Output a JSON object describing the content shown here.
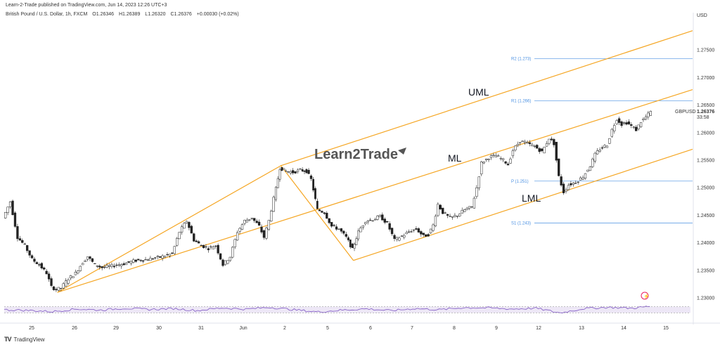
{
  "header": {
    "published": "Learn-2-Trade published on TradingView.com, Jun 14, 2023 12:26 UTC+3"
  },
  "instrument": {
    "name": "British Pound / U.S. Dollar, 1h, FXCM",
    "open": "O1.26346",
    "high": "H1.26389",
    "low": "L1.26320",
    "close": "C1.26376",
    "change": "+0.00030 (+0.02%)"
  },
  "footer": {
    "brand": "TradingView"
  },
  "watermark": "Learn2Trade",
  "chart_data": {
    "type": "candlestick",
    "currency": "USD",
    "symbol": "GBPUSD",
    "last_price": "1.26376",
    "countdown": "33:58",
    "ylim": [
      1.2295,
      1.2805
    ],
    "y_ticks": [
      "1.27500",
      "1.27000",
      "1.26500",
      "1.26000",
      "1.25500",
      "1.25000",
      "1.24500",
      "1.24000",
      "1.23500",
      "1.23000"
    ],
    "x_ticks": [
      "25",
      "26",
      "29",
      "30",
      "31",
      "Jun",
      "2",
      "5",
      "6",
      "7",
      "8",
      "9",
      "12",
      "13",
      "14",
      "15"
    ],
    "pivot_levels": [
      {
        "label": "R2 (1.273)",
        "value": 1.2734
      },
      {
        "label": "R1 (1.266)",
        "value": 1.2658
      },
      {
        "label": "P (1.251)",
        "value": 1.2512
      },
      {
        "label": "S1 (1.243)",
        "value": 1.2436
      }
    ],
    "channel": {
      "upper_label": "UML",
      "middle_label": "ML",
      "lower_label": "LML",
      "color": "#f5a623"
    },
    "price_path": [
      [
        0,
        1.2445
      ],
      [
        0.3,
        1.2475
      ],
      [
        0.6,
        1.241
      ],
      [
        0.9,
        1.2395
      ],
      [
        1.2,
        1.237
      ],
      [
        1.5,
        1.236
      ],
      [
        1.8,
        1.2345
      ],
      [
        2.0,
        1.232
      ],
      [
        2.2,
        1.2315
      ],
      [
        2.4,
        1.2318
      ],
      [
        2.7,
        1.2335
      ],
      [
        3.0,
        1.2345
      ],
      [
        3.3,
        1.2365
      ],
      [
        3.5,
        1.2375
      ],
      [
        3.8,
        1.236
      ],
      [
        4.1,
        1.2355
      ],
      [
        4.5,
        1.2358
      ],
      [
        5.0,
        1.2362
      ],
      [
        5.5,
        1.2368
      ],
      [
        6.0,
        1.237
      ],
      [
        6.5,
        1.2374
      ],
      [
        7.0,
        1.238
      ],
      [
        7.3,
        1.242
      ],
      [
        7.6,
        1.244
      ],
      [
        7.9,
        1.2405
      ],
      [
        8.2,
        1.2395
      ],
      [
        8.5,
        1.239
      ],
      [
        8.8,
        1.2395
      ],
      [
        9.1,
        1.236
      ],
      [
        9.4,
        1.2375
      ],
      [
        9.7,
        1.242
      ],
      [
        10.0,
        1.244
      ],
      [
        10.3,
        1.2445
      ],
      [
        10.6,
        1.243
      ],
      [
        10.8,
        1.241
      ],
      [
        11.0,
        1.244
      ],
      [
        11.2,
        1.248
      ],
      [
        11.45,
        1.2536
      ],
      [
        11.7,
        1.253
      ],
      [
        12.0,
        1.2528
      ],
      [
        12.3,
        1.2532
      ],
      [
        12.55,
        1.253
      ],
      [
        12.75,
        1.2515
      ],
      [
        13.0,
        1.246
      ],
      [
        13.3,
        1.2455
      ],
      [
        13.6,
        1.243
      ],
      [
        13.9,
        1.2425
      ],
      [
        14.2,
        1.241
      ],
      [
        14.45,
        1.2388
      ],
      [
        14.7,
        1.242
      ],
      [
        15.0,
        1.244
      ],
      [
        15.3,
        1.2442
      ],
      [
        15.6,
        1.2448
      ],
      [
        15.9,
        1.2435
      ],
      [
        16.2,
        1.2405
      ],
      [
        16.5,
        1.2412
      ],
      [
        16.8,
        1.242
      ],
      [
        17.1,
        1.2425
      ],
      [
        17.4,
        1.2412
      ],
      [
        17.6,
        1.2415
      ],
      [
        17.8,
        1.2432
      ],
      [
        18.0,
        1.247
      ],
      [
        18.2,
        1.2455
      ],
      [
        18.5,
        1.2445
      ],
      [
        18.8,
        1.245
      ],
      [
        19.1,
        1.246
      ],
      [
        19.4,
        1.2465
      ],
      [
        19.6,
        1.25
      ],
      [
        19.8,
        1.2545
      ],
      [
        20.1,
        1.2555
      ],
      [
        20.4,
        1.2558
      ],
      [
        20.7,
        1.255
      ],
      [
        20.9,
        1.2542
      ],
      [
        21.1,
        1.2568
      ],
      [
        21.4,
        1.2585
      ],
      [
        21.7,
        1.258
      ],
      [
        22.0,
        1.2575
      ],
      [
        22.3,
        1.2565
      ],
      [
        22.6,
        1.259
      ],
      [
        22.8,
        1.258
      ],
      [
        23.0,
        1.252
      ],
      [
        23.2,
        1.2492
      ],
      [
        23.4,
        1.2505
      ],
      [
        23.7,
        1.251
      ],
      [
        24.0,
        1.252
      ],
      [
        24.3,
        1.254
      ],
      [
        24.5,
        1.256
      ],
      [
        24.7,
        1.257
      ],
      [
        25.0,
        1.2578
      ],
      [
        25.2,
        1.2605
      ],
      [
        25.4,
        1.2625
      ],
      [
        25.6,
        1.2615
      ],
      [
        25.8,
        1.2618
      ],
      [
        26.0,
        1.2612
      ],
      [
        26.2,
        1.2605
      ],
      [
        26.4,
        1.262
      ],
      [
        26.6,
        1.2628
      ],
      [
        26.8,
        1.2638
      ]
    ],
    "rsi_path": [
      [
        0,
        50
      ],
      [
        1,
        46
      ],
      [
        2,
        38
      ],
      [
        3,
        55
      ],
      [
        4,
        48
      ],
      [
        5,
        60
      ],
      [
        6,
        52
      ],
      [
        7,
        58
      ],
      [
        8,
        45
      ],
      [
        9,
        62
      ],
      [
        10,
        54
      ],
      [
        11,
        66
      ],
      [
        12,
        50
      ],
      [
        13,
        36
      ],
      [
        14,
        48
      ],
      [
        15,
        56
      ],
      [
        16,
        44
      ],
      [
        17,
        58
      ],
      [
        18,
        50
      ],
      [
        19,
        64
      ],
      [
        20,
        62
      ],
      [
        21,
        55
      ],
      [
        22,
        60
      ],
      [
        23,
        30
      ],
      [
        24,
        58
      ],
      [
        25,
        66
      ],
      [
        26,
        60
      ],
      [
        26.8,
        74
      ]
    ]
  }
}
